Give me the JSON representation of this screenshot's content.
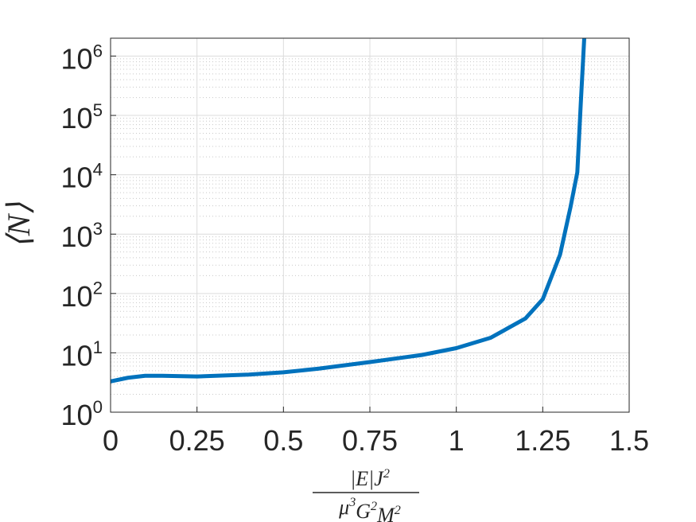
{
  "chart_data": {
    "type": "line",
    "x_label": {
      "numerator": "|E|J^2",
      "denominator": "μ^3G^2M^2"
    },
    "y_label": "⟨N⟩",
    "x": [
      0,
      0.05,
      0.1,
      0.15,
      0.25,
      0.4,
      0.5,
      0.6,
      0.75,
      0.9,
      1.0,
      1.1,
      1.2,
      1.25,
      1.3,
      1.33,
      1.35,
      1.36,
      1.37
    ],
    "series": [
      {
        "name": "⟨N⟩",
        "color": "#0072bd",
        "values": [
          3.3,
          3.8,
          4.1,
          4.1,
          4.0,
          4.3,
          4.7,
          5.4,
          7.0,
          9.2,
          12,
          18,
          38,
          80,
          450,
          2800,
          11000,
          160000,
          2000000
        ]
      }
    ],
    "xlim": [
      0,
      1.5
    ],
    "xticks": [
      0,
      0.25,
      0.5,
      0.75,
      1,
      1.25,
      1.5
    ],
    "ylim": [
      1,
      2000000
    ],
    "log_y": true,
    "yticks": [
      {
        "value": 1,
        "label": "10^0"
      },
      {
        "value": 10,
        "label": "10^1"
      },
      {
        "value": 100,
        "label": "10^2"
      },
      {
        "value": 1000,
        "label": "10^3"
      },
      {
        "value": 10000,
        "label": "10^4"
      },
      {
        "value": 100000,
        "label": "10^5"
      },
      {
        "value": 1000000,
        "label": "10^6"
      }
    ],
    "grid": true,
    "minor_grid": true
  }
}
